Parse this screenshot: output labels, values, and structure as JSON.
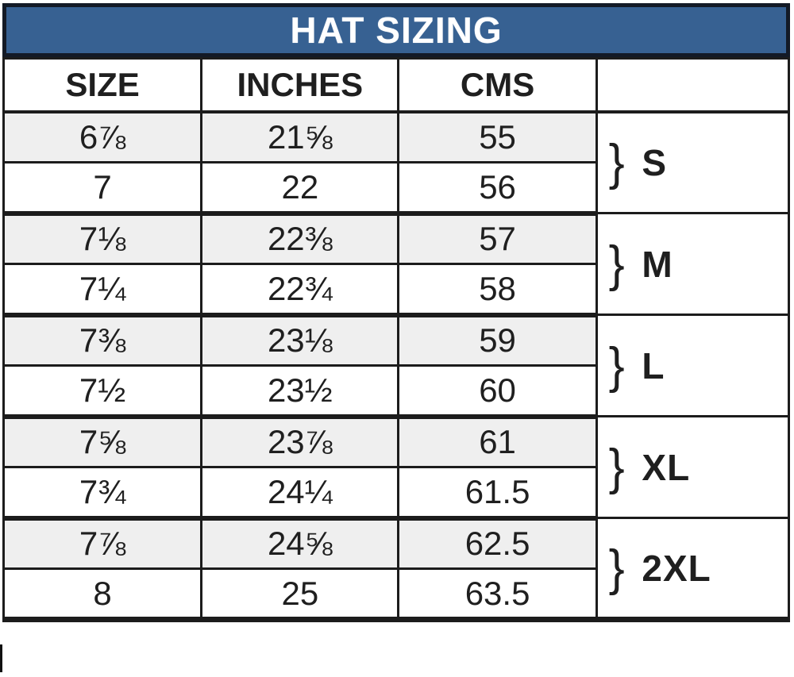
{
  "title": "HAT SIZING",
  "chart_data": {
    "type": "table",
    "title": "HAT SIZING",
    "columns": [
      "SIZE",
      "INCHES",
      "CMS",
      ""
    ],
    "rows": [
      {
        "size": "6⅞",
        "inches": "21⅝",
        "cms": "55"
      },
      {
        "size": "7",
        "inches": "22",
        "cms": "56"
      },
      {
        "size": "7⅛",
        "inches": "22⅜",
        "cms": "57"
      },
      {
        "size": "7¼",
        "inches": "22¾",
        "cms": "58"
      },
      {
        "size": "7⅜",
        "inches": "23⅛",
        "cms": "59"
      },
      {
        "size": "7½",
        "inches": "23½",
        "cms": "60"
      },
      {
        "size": "7⅝",
        "inches": "23⅞",
        "cms": "61"
      },
      {
        "size": "7¾",
        "inches": "24¼",
        "cms": "61.5"
      },
      {
        "size": "7⅞",
        "inches": "24⅝",
        "cms": "62.5"
      },
      {
        "size": "8",
        "inches": "25",
        "cms": "63.5"
      }
    ],
    "groups": [
      {
        "brace": "}",
        "label": "S",
        "rows": [
          "6⅞",
          "7"
        ]
      },
      {
        "brace": "}",
        "label": "M",
        "rows": [
          "7⅛",
          "7¼"
        ]
      },
      {
        "brace": "}",
        "label": "L",
        "rows": [
          "7⅜",
          "7½"
        ]
      },
      {
        "brace": "}",
        "label": "XL",
        "rows": [
          "7⅝",
          "7¾"
        ]
      },
      {
        "brace": "}",
        "label": "2XL",
        "rows": [
          "7⅞",
          "8"
        ]
      }
    ],
    "layout_hints": {
      "striped_rows": "odd rows shaded light gray",
      "group_column": "right column, each label spans 2 rows"
    }
  },
  "colors": {
    "header_bg": "#376192",
    "title_border": "#131a26",
    "border": "#1c1c1c",
    "row_alt_bg": "#efefef",
    "text": "#1f1f1f",
    "title_text": "#ffffff"
  }
}
